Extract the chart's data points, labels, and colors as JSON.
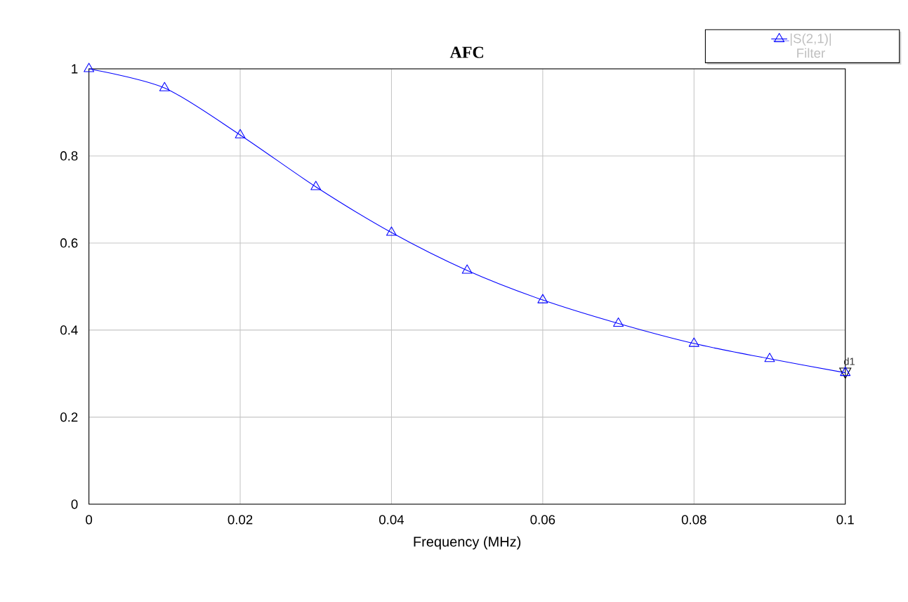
{
  "chart_data": {
    "type": "line",
    "title": "AFC",
    "xlabel": "Frequency (MHz)",
    "x": [
      0,
      0.01,
      0.02,
      0.03,
      0.04,
      0.05,
      0.06,
      0.07,
      0.08,
      0.09,
      0.1
    ],
    "series": [
      {
        "name": "|S(2,1)|",
        "color": "#0000ff",
        "values": [
          1.0,
          0.956,
          0.848,
          0.729,
          0.624,
          0.537,
          0.469,
          0.415,
          0.369,
          0.334,
          0.302
        ]
      }
    ],
    "xlim": [
      0,
      0.1
    ],
    "ylim": [
      0,
      1
    ],
    "xticks": [
      0,
      0.02,
      0.04,
      0.06,
      0.08,
      0.1
    ],
    "yticks": [
      0,
      0.2,
      0.4,
      0.6,
      0.8,
      1
    ],
    "grid": true,
    "legend": "top right",
    "marker": "triangle",
    "line_style": "solid",
    "annotations": [
      "Filter",
      {
        "text": "d1",
        "x": 0.1,
        "y": 0.302
      }
    ]
  }
}
